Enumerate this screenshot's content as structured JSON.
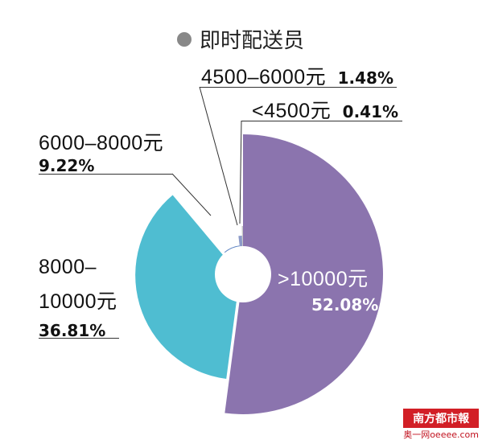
{
  "legend": {
    "label": "即时配送员",
    "dot_color": "#888888"
  },
  "chart_data": {
    "type": "pie",
    "style": "exploded-donut",
    "series_name": "即时配送员",
    "slices": [
      {
        "label": ">10000元",
        "percent": "52.08%",
        "value": 52.08,
        "color": "#8b74ae"
      },
      {
        "label": "8000–10000元",
        "percent": "36.81%",
        "value": 36.81,
        "color": "#4fbdd1"
      },
      {
        "label": "6000–8000元",
        "percent": "9.22%",
        "value": 9.22,
        "color": "#5b82c2"
      },
      {
        "label": "4500–6000元",
        "percent": "1.48%",
        "value": 1.48,
        "color": "#8c9ac8"
      },
      {
        "label": "<4500元",
        "percent": "0.41%",
        "value": 0.41,
        "color": "#c7c7c7"
      }
    ]
  },
  "labels": {
    "s4500": {
      "range": "4500–6000元",
      "pct": "1.48%"
    },
    "slt4500": {
      "range": "<4500元",
      "pct": "0.41%"
    },
    "s6000": {
      "range": "6000–8000元",
      "pct": "9.22%"
    },
    "s8000": {
      "line1": "8000–",
      "line2": "10000元",
      "pct": "36.81%"
    },
    "s10000": {
      "range": ">10000元",
      "pct": "52.08%"
    }
  },
  "watermark": {
    "title": "南方都市報",
    "sub": "奥一网oeeee.com"
  }
}
